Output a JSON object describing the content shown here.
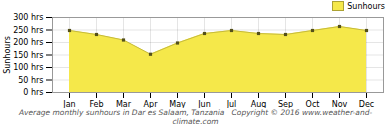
{
  "chart_data": {
    "type": "area",
    "categories": [
      "Jan",
      "Feb",
      "Mar",
      "Apr",
      "May",
      "Jun",
      "Jul",
      "Aug",
      "Sep",
      "Oct",
      "Nov",
      "Dec"
    ],
    "series": [
      {
        "name": "Sunhours",
        "color": "#F5E84A",
        "marker": "square",
        "values": [
          248,
          232,
          210,
          153,
          198,
          236,
          248,
          236,
          232,
          248,
          264,
          248
        ]
      }
    ],
    "ylabel": "Sunhours",
    "ylim": [
      0,
      300
    ],
    "yticks": [
      {
        "value": 0,
        "label": "0 hrs"
      },
      {
        "value": 50,
        "label": "50 hrs"
      },
      {
        "value": 100,
        "label": "100 hrs"
      },
      {
        "value": 150,
        "label": "150 hrs"
      },
      {
        "value": 200,
        "label": "200 hrs"
      },
      {
        "value": 250,
        "label": "250 hrs"
      },
      {
        "value": 300,
        "label": "300 hrs"
      }
    ],
    "grid": true,
    "legend": "upper right",
    "caption": "Average monthly sunhours in Dar es Salaam, Tanzania   Copyright © 2016 www.weather-and-climate.com"
  }
}
